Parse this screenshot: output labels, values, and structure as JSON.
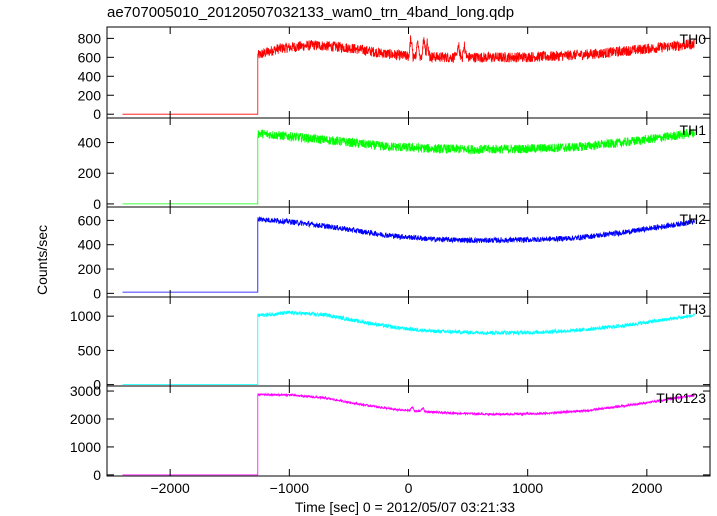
{
  "chart_data": {
    "type": "line",
    "title": "ae707005010_20120507032133_wam0_trn_4band_long.qdp",
    "xlabel": "Time [sec] 0 = 2012/05/07 03:21:33",
    "ylabel": "Counts/sec",
    "xlim": [
      -2530,
      2530
    ],
    "x_ticks": [
      -2000,
      -1000,
      0,
      1000,
      2000
    ],
    "x_tick_labels": [
      "−2000",
      "−1000",
      "0",
      "1000",
      "2000"
    ],
    "grid": false,
    "panels": [
      {
        "name": "TH0",
        "color": "#ff0000",
        "ylim": [
          -40,
          920
        ],
        "y_ticks": [
          0,
          200,
          400,
          600,
          800
        ],
        "baseline": 0,
        "step_time": -1265,
        "noise": 55,
        "points": [
          [
            -1265,
            620
          ],
          [
            -1100,
            690
          ],
          [
            -800,
            730
          ],
          [
            -500,
            700
          ],
          [
            -200,
            640
          ],
          [
            0,
            610
          ],
          [
            400,
            600
          ],
          [
            800,
            600
          ],
          [
            1200,
            610
          ],
          [
            1600,
            640
          ],
          [
            2000,
            690
          ],
          [
            2400,
            740
          ]
        ],
        "spikes": [
          [
            20,
            230
          ],
          [
            80,
            200
          ],
          [
            130,
            270
          ],
          [
            160,
            210
          ],
          [
            420,
            140
          ],
          [
            470,
            150
          ]
        ]
      },
      {
        "name": "TH1",
        "color": "#00ff00",
        "ylim": [
          -20,
          560
        ],
        "y_ticks": [
          0,
          200,
          400
        ],
        "baseline": 0,
        "step_time": -1265,
        "noise": 30,
        "points": [
          [
            -1265,
            460
          ],
          [
            -1000,
            440
          ],
          [
            -600,
            410
          ],
          [
            -200,
            375
          ],
          [
            200,
            360
          ],
          [
            600,
            355
          ],
          [
            1000,
            360
          ],
          [
            1400,
            370
          ],
          [
            1800,
            400
          ],
          [
            2200,
            440
          ],
          [
            2400,
            465
          ]
        ],
        "spikes": []
      },
      {
        "name": "TH2",
        "color": "#0000ff",
        "ylim": [
          -30,
          710
        ],
        "y_ticks": [
          0,
          200,
          400,
          600
        ],
        "baseline": 10,
        "step_time": -1265,
        "noise": 22,
        "points": [
          [
            -1265,
            610
          ],
          [
            -1000,
            590
          ],
          [
            -600,
            540
          ],
          [
            -200,
            480
          ],
          [
            200,
            445
          ],
          [
            600,
            435
          ],
          [
            1000,
            440
          ],
          [
            1400,
            455
          ],
          [
            1800,
            500
          ],
          [
            2200,
            560
          ],
          [
            2400,
            590
          ]
        ],
        "spikes": []
      },
      {
        "name": "TH3",
        "color": "#00ffff",
        "ylim": [
          -20,
          1280
        ],
        "y_ticks": [
          0,
          500,
          1000
        ],
        "y_tick_labels": [
          "0",
          "500",
          "1000"
        ],
        "baseline": 0,
        "step_time": -1265,
        "noise": 28,
        "points": [
          [
            -1265,
            1010
          ],
          [
            -1000,
            1050
          ],
          [
            -700,
            1020
          ],
          [
            -400,
            920
          ],
          [
            -100,
            830
          ],
          [
            200,
            780
          ],
          [
            600,
            760
          ],
          [
            1000,
            760
          ],
          [
            1400,
            790
          ],
          [
            1800,
            860
          ],
          [
            2200,
            960
          ],
          [
            2400,
            1010
          ]
        ],
        "spikes": []
      },
      {
        "name": "TH0123",
        "color": "#ff00ff",
        "ylim": [
          -40,
          3180
        ],
        "y_ticks": [
          0,
          1000,
          2000,
          3000
        ],
        "baseline": 0,
        "step_time": -1265,
        "noise": 40,
        "points": [
          [
            -1265,
            2870
          ],
          [
            -1000,
            2860
          ],
          [
            -700,
            2750
          ],
          [
            -400,
            2520
          ],
          [
            -100,
            2330
          ],
          [
            300,
            2220
          ],
          [
            700,
            2170
          ],
          [
            1100,
            2190
          ],
          [
            1500,
            2300
          ],
          [
            1900,
            2520
          ],
          [
            2200,
            2720
          ],
          [
            2400,
            2840
          ]
        ],
        "spikes": [
          [
            30,
            200
          ],
          [
            120,
            170
          ]
        ]
      }
    ]
  }
}
